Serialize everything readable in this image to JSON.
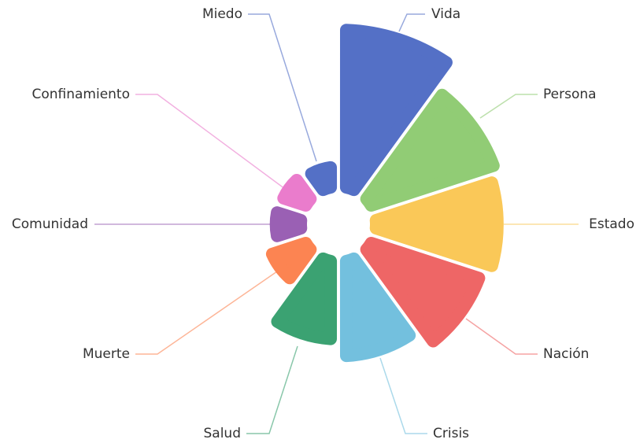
{
  "chart_data": {
    "type": "rose",
    "categories": [
      "Vida",
      "Persona",
      "Estado",
      "Nación",
      "Crisis",
      "Salud",
      "Muerte",
      "Comunidad",
      "Confinamiento",
      "Miedo"
    ],
    "values": [
      100,
      83,
      79,
      74,
      63,
      53,
      28,
      22,
      21,
      19
    ],
    "colors": [
      "#5470c6",
      "#91cc75",
      "#fac858",
      "#ee6666",
      "#73c0de",
      "#3ba272",
      "#fc8452",
      "#9a60b4",
      "#ea7ccc",
      "#5470c6"
    ]
  }
}
